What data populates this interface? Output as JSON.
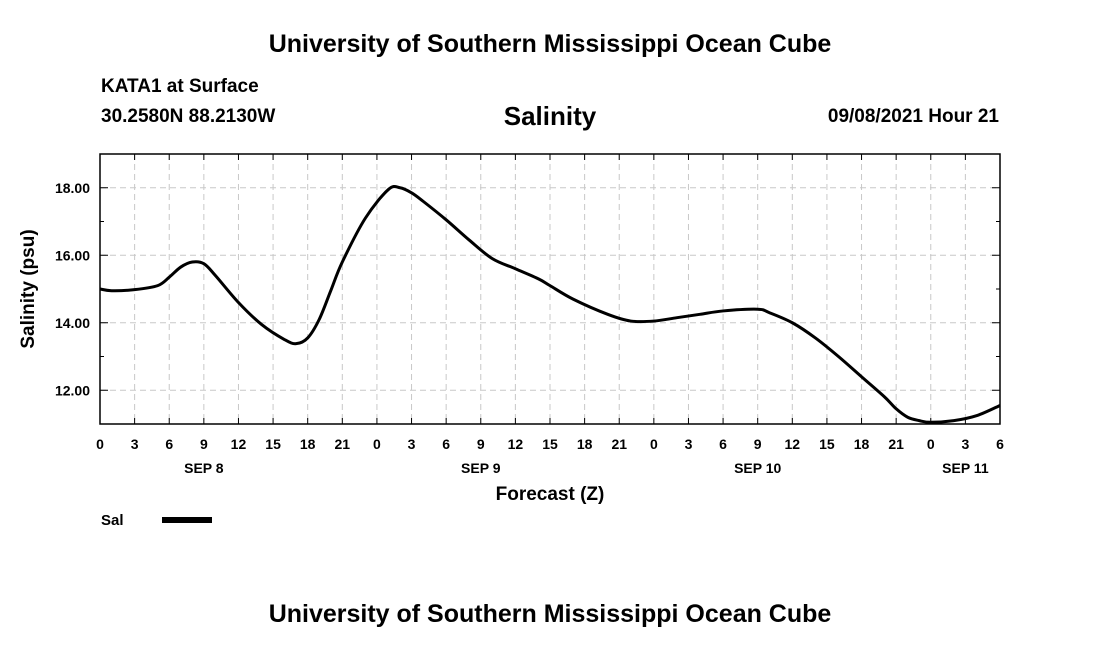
{
  "header": {
    "title": "University of Southern Mississippi Ocean Cube",
    "station": "KATA1 at Surface",
    "coords": "30.2580N  88.2130W",
    "parameter": "Salinity",
    "timestamp": "09/08/2021 Hour 21"
  },
  "footer": {
    "title": "University of Southern Mississippi Ocean Cube"
  },
  "chart_data": {
    "type": "line",
    "xlabel": "Forecast (Z)",
    "ylabel": "Salinity (psu)",
    "xlim": [
      0,
      78
    ],
    "ylim": [
      11.0,
      19.0
    ],
    "grid": true,
    "x_ticks": [
      0,
      3,
      6,
      9,
      12,
      15,
      18,
      21,
      24,
      27,
      30,
      33,
      36,
      39,
      42,
      45,
      48,
      51,
      54,
      57,
      60,
      63,
      66,
      69,
      72,
      75,
      78
    ],
    "x_tick_labels": [
      "0",
      "3",
      "6",
      "9",
      "12",
      "15",
      "18",
      "21",
      "0",
      "3",
      "6",
      "9",
      "12",
      "15",
      "18",
      "21",
      "0",
      "3",
      "6",
      "9",
      "12",
      "15",
      "18",
      "21",
      "0",
      "3",
      "6"
    ],
    "y_ticks": [
      12,
      14,
      16,
      18
    ],
    "y_tick_labels": [
      "12.00",
      "14.00",
      "16.00",
      "18.00"
    ],
    "day_labels": [
      {
        "x": 9,
        "label": "SEP 8"
      },
      {
        "x": 33,
        "label": "SEP 9"
      },
      {
        "x": 57,
        "label": "SEP 10"
      },
      {
        "x": 75,
        "label": "SEP 11"
      }
    ],
    "legend": {
      "placement": "bottom-left"
    },
    "series": [
      {
        "name": "Sal",
        "color": "#000000",
        "x": [
          0,
          1,
          3,
          5,
          6,
          7,
          8,
          9,
          10,
          12,
          14,
          16,
          17,
          18,
          19,
          20,
          21,
          23,
          25,
          26,
          27,
          28,
          30,
          32,
          34,
          36,
          38,
          39,
          41,
          44,
          46,
          48,
          50,
          52,
          54,
          57,
          58,
          60,
          62,
          64,
          66,
          68,
          69,
          70,
          71,
          72,
          74,
          76,
          78
        ],
        "y": [
          15.0,
          14.95,
          14.98,
          15.1,
          15.35,
          15.65,
          15.8,
          15.75,
          15.4,
          14.6,
          13.95,
          13.5,
          13.38,
          13.55,
          14.1,
          14.95,
          15.8,
          17.1,
          17.95,
          18.0,
          17.85,
          17.6,
          17.05,
          16.45,
          15.9,
          15.6,
          15.3,
          15.1,
          14.7,
          14.25,
          14.05,
          14.05,
          14.15,
          14.25,
          14.35,
          14.4,
          14.3,
          14.0,
          13.55,
          13.0,
          12.4,
          11.8,
          11.45,
          11.2,
          11.1,
          11.05,
          11.1,
          11.25,
          11.55
        ]
      }
    ]
  }
}
